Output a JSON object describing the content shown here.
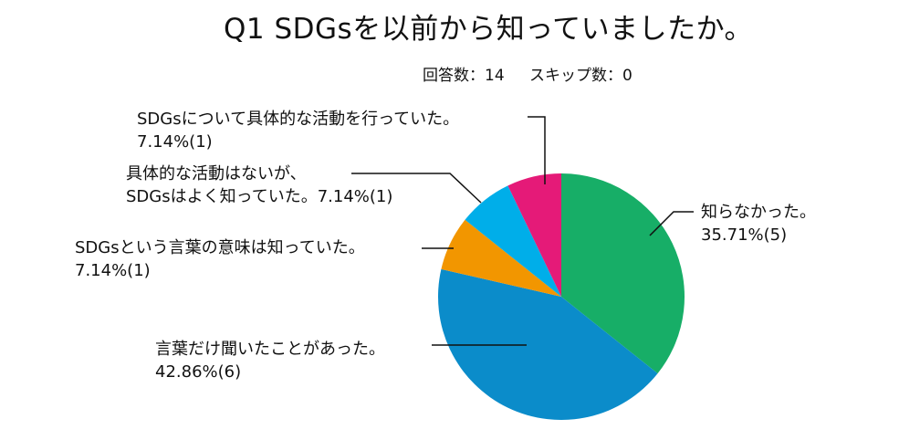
{
  "chart_data": {
    "type": "pie",
    "title": "Q1 SDGsを以前から知っていましたか。",
    "responses_label": "回答数：14",
    "skips_label": "スキップ数：0",
    "start": "12 o'clock, clockwise",
    "slices": [
      {
        "label": "知らなかった。",
        "percent": 35.71,
        "count": 5,
        "value_text": "35.71%(5)",
        "color": "#17ae67"
      },
      {
        "label": "言葉だけ聞いたことがあった。",
        "percent": 42.86,
        "count": 6,
        "value_text": "42.86%(6)",
        "color": "#0b8cca"
      },
      {
        "label": "SDGsという言葉の意味は知っていた。",
        "percent": 7.14,
        "count": 1,
        "value_text": "7.14%(1)",
        "color": "#f29600"
      },
      {
        "label": "具体的な活動はないが、",
        "label2": "SDGsはよく知っていた。",
        "percent": 7.14,
        "count": 1,
        "value_text": "7.14%(1)",
        "color": "#00aee9"
      },
      {
        "label": "SDGsについて具体的な活動を行っていた。",
        "percent": 7.14,
        "count": 1,
        "value_text": "7.14%(1)",
        "color": "#e51a78"
      }
    ]
  }
}
